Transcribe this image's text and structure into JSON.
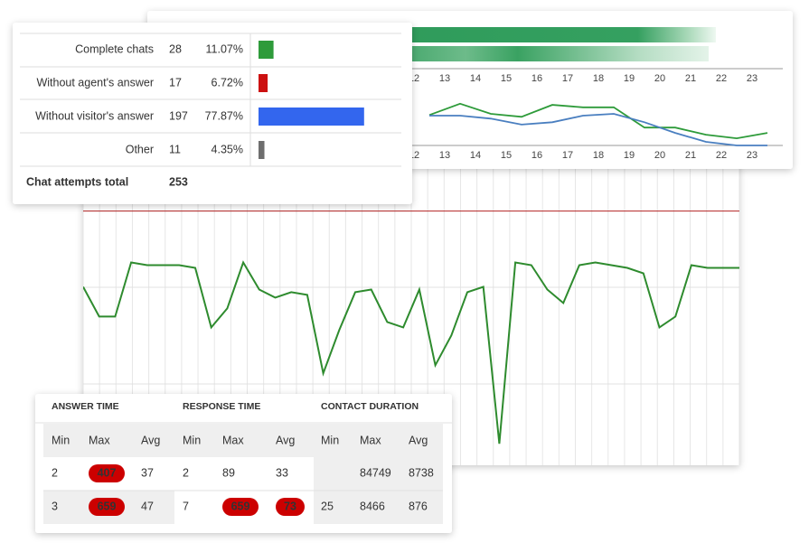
{
  "chat_summary": {
    "rows": [
      {
        "label": "Complete chats",
        "count": 28,
        "percent": 11.07,
        "percent_label": "11.07%",
        "color": "#2e9b3a"
      },
      {
        "label": "Without agent's answer",
        "count": 17,
        "percent": 6.72,
        "percent_label": "6.72%",
        "color": "#cc1111"
      },
      {
        "label": "Without visitor's answer",
        "count": 197,
        "percent": 77.87,
        "percent_label": "77.87%",
        "color": "#3366ee"
      },
      {
        "label": "Other",
        "count": 11,
        "percent": 4.35,
        "percent_label": "4.35%",
        "color": "#6e6e6e"
      }
    ],
    "total_label": "Chat attempts total",
    "total": 253
  },
  "hourly_chart": {
    "hours": [
      12,
      13,
      14,
      15,
      16,
      17,
      18,
      19,
      20,
      21,
      22,
      23
    ],
    "x": [
      12.5,
      13.5,
      14.5,
      15.5,
      16.5,
      17.5,
      18.5,
      19.5,
      20.5,
      21.5,
      22.5,
      23.5
    ],
    "ylim": [
      0,
      100
    ],
    "series": [
      {
        "color": "#2e9b3a",
        "values": [
          51,
          70,
          53,
          48,
          68,
          64,
          64,
          30,
          30,
          18,
          12,
          21
        ]
      },
      {
        "color": "#4a7fc0",
        "values": [
          50,
          50,
          45,
          35,
          39,
          50,
          53,
          39,
          21,
          6,
          0,
          0
        ]
      }
    ]
  },
  "trend_chart": {
    "color": "#2e8b2e",
    "ylim": [
      0,
      100
    ],
    "threshold": 94,
    "threshold_color": "#b22222",
    "values": [
      66,
      55,
      55,
      75,
      74,
      74,
      74,
      73,
      51,
      58,
      75,
      65,
      62,
      64,
      63,
      34,
      50,
      64,
      65,
      53,
      51,
      65,
      37,
      48,
      64,
      66,
      8,
      75,
      74,
      65,
      60,
      74,
      75,
      74,
      73,
      71,
      51,
      55,
      74,
      73,
      73,
      73
    ]
  },
  "time_table": {
    "groups": [
      "ANSWER TIME",
      "RESPONSE TIME",
      "CONTACT DURATION"
    ],
    "columns": [
      "Min",
      "Max",
      "Avg",
      "Min",
      "Max",
      "Avg",
      "Min",
      "Max",
      "Avg"
    ],
    "rows": [
      [
        2,
        {
          "value": 407,
          "highlight": true
        },
        37,
        2,
        89,
        33,
        null,
        84749,
        8738
      ],
      [
        3,
        {
          "value": 659,
          "highlight": true
        },
        47,
        7,
        {
          "value": 659,
          "highlight": true
        },
        {
          "value": 73,
          "highlight": true
        },
        25,
        8466,
        876
      ]
    ]
  }
}
